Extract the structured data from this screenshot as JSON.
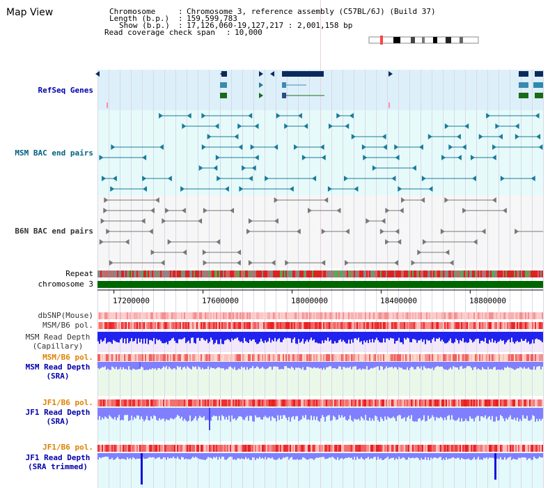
{
  "app": {
    "title": "Map View"
  },
  "header": {
    "chromosome_label": "Chromosome",
    "chromosome_value": "Chromosome 3, reference assembly (C57BL/6J) (Build 37)",
    "length_label": "Length (b.p.)",
    "length_value": "159,599,783",
    "show_label": "Show (b.p.)",
    "show_value": "17,126,060-19,127,217 : 2,001,158 bp",
    "coverage_label": "Read coverage check span",
    "coverage_value": "10,000",
    "sep": ":"
  },
  "tracks": {
    "refseq": "RefSeq Genes",
    "msm_bac": "MSM BAC end pairs",
    "b6n_bac": "B6N BAC end pairs",
    "repeat": "Repeat",
    "chromosome": "chromosome 3",
    "dbsnp": "dbSNP(Mouse)",
    "msm_pol": "MSM/B6 pol.",
    "msm_depth_cap_1": "MSM Read Depth",
    "msm_depth_cap_2": "(Capillary)",
    "msm_pol2": "MSM/B6 pol.",
    "msm_depth_sra_1": "MSM Read Depth",
    "msm_depth_sra_2": "(SRA)",
    "jf1_pol": "JF1/B6 pol.",
    "jf1_depth_sra_1": "JF1 Read Depth",
    "jf1_depth_sra_2": "(SRA)",
    "jf1_pol2": "JF1/B6 pol.",
    "jf1_depth_trim_1": "JF1 Read Depth",
    "jf1_depth_trim_2": "(SRA trimmed)"
  },
  "axis": {
    "ticks": [
      "17200000",
      "17600000",
      "18000000",
      "18400000",
      "18800000"
    ],
    "tick_values": [
      17200000,
      17600000,
      18000000,
      18400000,
      18800000
    ],
    "range": [
      17126060,
      19127217
    ]
  },
  "colors": {
    "refseq_bg": "#ddf0fa",
    "msm_bac_bg": "#e6fafa",
    "b6n_bg": "#f6f6f6",
    "chrom_bar": "#006600",
    "depth_blue": "#0000dd",
    "depth_light": "#8080ff",
    "pol_red": "#ee3333",
    "grid": "#d8d8e8"
  },
  "icons": {
    "ideogram": "chromosome-ideogram-icon"
  }
}
